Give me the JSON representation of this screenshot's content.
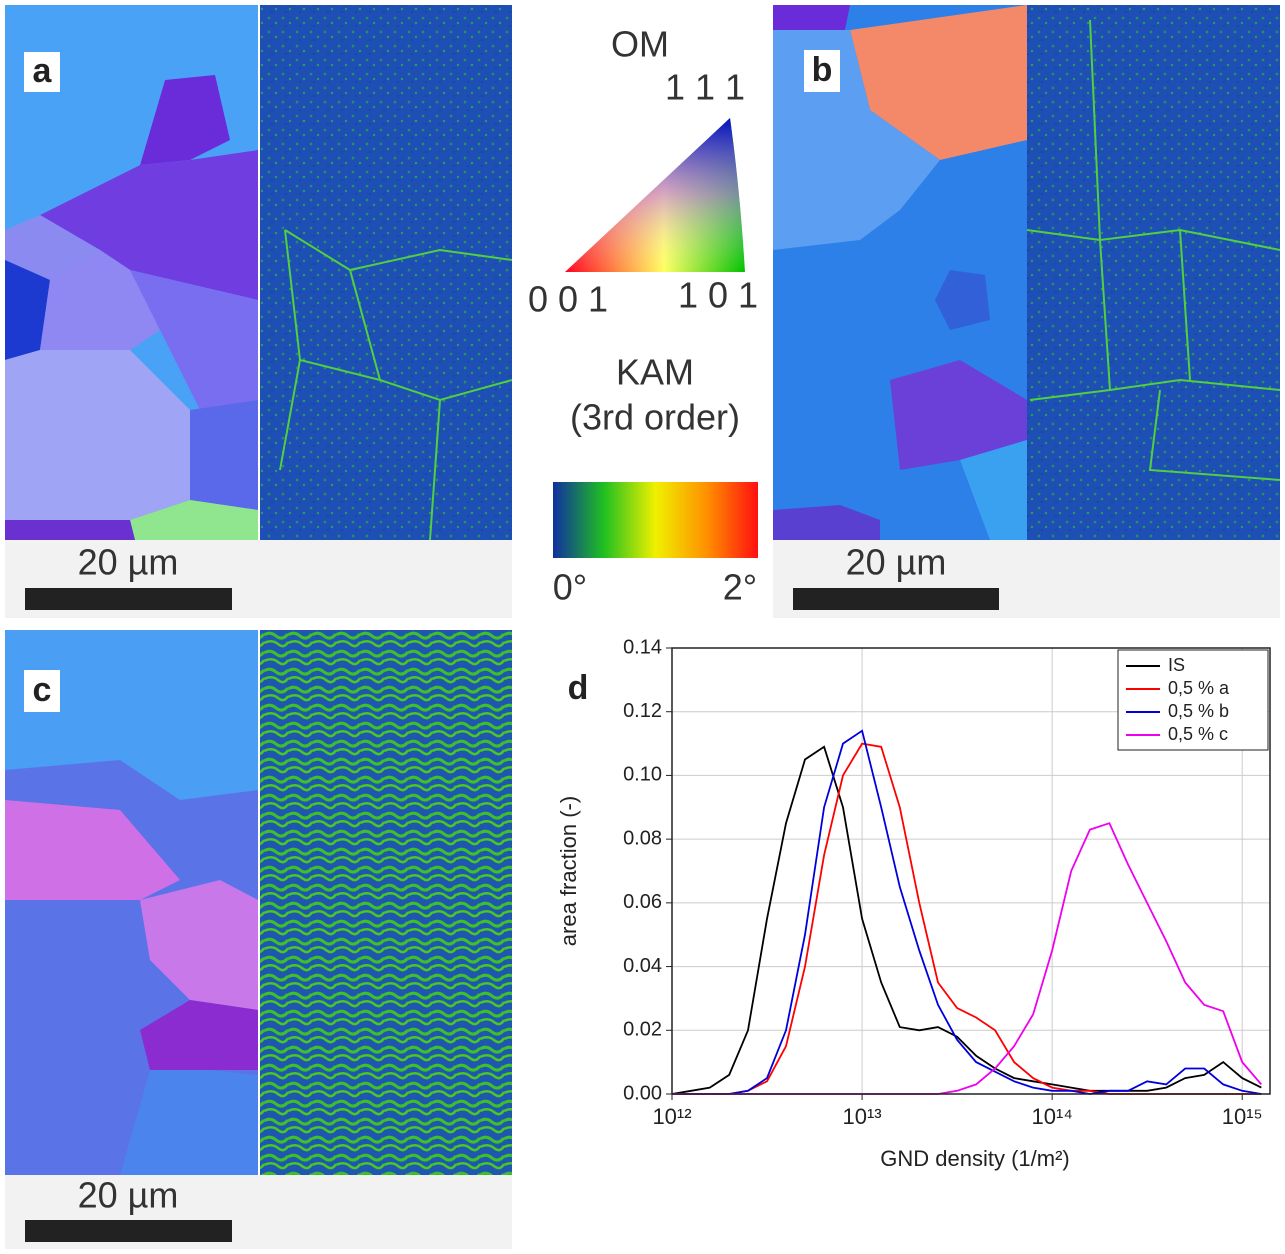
{
  "panels": {
    "a": {
      "label": "a",
      "scale_bar": "20 µm"
    },
    "b": {
      "label": "b",
      "scale_bar": "20 µm"
    },
    "c": {
      "label": "c",
      "scale_bar": "20 µm"
    }
  },
  "legend_key": {
    "om_title": "OM",
    "pole_111": "1 1 1",
    "pole_001": "0 0 1",
    "pole_101": "1 0 1",
    "kam_title": "KAM",
    "kam_subtitle": "(3rd order)",
    "kam_min": "0°",
    "kam_max": "2°"
  },
  "chart_data": {
    "type": "line",
    "panel_label": "d",
    "x_label": "GND density (1/m²)",
    "y_label": "area fraction (-)",
    "log_x": true,
    "grid": true,
    "legend": "upper right",
    "xlim": [
      1000000000000.0,
      1400000000000000.0
    ],
    "xticks": [
      {
        "value": 1000000000000.0,
        "label": "10¹²"
      },
      {
        "value": 10000000000000.0,
        "label": "10¹³"
      },
      {
        "value": 100000000000000.0,
        "label": "10¹⁴"
      },
      {
        "value": 1000000000000000.0,
        "label": "10¹⁵"
      }
    ],
    "ylim": [
      0,
      0.14
    ],
    "yticks": [
      {
        "value": 0,
        "label": "0.00"
      },
      0.02,
      0.04,
      0.06,
      0.08,
      {
        "value": 0.1,
        "label": "0.10"
      },
      0.12,
      0.14
    ],
    "x": [
      1000000000000.0,
      1260000000000.0,
      1580000000000.0,
      2000000000000.0,
      2510000000000.0,
      3160000000000.0,
      3980000000000.0,
      5010000000000.0,
      6310000000000.0,
      7940000000000.0,
      10000000000000.0,
      12600000000000.0,
      15800000000000.0,
      20000000000000.0,
      25100000000000.0,
      31600000000000.0,
      39800000000000.0,
      50100000000000.0,
      63100000000000.0,
      79400000000000.0,
      100000000000000.0,
      126000000000000.0,
      158000000000000.0,
      200000000000000.0,
      251000000000000.0,
      316000000000000.0,
      398000000000000.0,
      501000000000000.0,
      631000000000000.0,
      794000000000000.0,
      1000000000000000.0,
      1260000000000000.0
    ],
    "series": [
      {
        "name": "IS",
        "color": "#000000",
        "values": [
          0,
          0.001,
          0.002,
          0.006,
          0.02,
          0.055,
          0.085,
          0.105,
          0.109,
          0.09,
          0.055,
          0.035,
          0.021,
          0.02,
          0.021,
          0.018,
          0.012,
          0.008,
          0.005,
          0.004,
          0.003,
          0.002,
          0.001,
          0.001,
          0.001,
          0.001,
          0.002,
          0.005,
          0.006,
          0.01,
          0.005,
          0.002
        ]
      },
      {
        "name": "0,5 % a",
        "color": "#ff0000",
        "values": [
          0,
          0,
          0,
          0,
          0.001,
          0.004,
          0.015,
          0.04,
          0.075,
          0.1,
          0.11,
          0.109,
          0.09,
          0.06,
          0.035,
          0.027,
          0.024,
          0.02,
          0.01,
          0.005,
          0.002,
          0.001,
          0.001,
          0,
          0,
          0,
          0,
          0,
          0,
          0,
          0,
          0
        ]
      },
      {
        "name": "0,5 % b",
        "color": "#0000dd",
        "values": [
          0,
          0,
          0,
          0,
          0.001,
          0.005,
          0.02,
          0.05,
          0.09,
          0.11,
          0.114,
          0.09,
          0.065,
          0.045,
          0.028,
          0.017,
          0.01,
          0.007,
          0.004,
          0.002,
          0.001,
          0.001,
          0,
          0.001,
          0.001,
          0.004,
          0.003,
          0.008,
          0.008,
          0.003,
          0.001,
          0
        ]
      },
      {
        "name": "0,5 % c",
        "color": "#ee00ee",
        "values": [
          0,
          0,
          0,
          0,
          0,
          0,
          0,
          0,
          0,
          0,
          0,
          0,
          0,
          0,
          0,
          0.001,
          0.003,
          0.008,
          0.015,
          0.025,
          0.045,
          0.07,
          0.083,
          0.085,
          0.072,
          0.06,
          0.048,
          0.035,
          0.028,
          0.026,
          0.01,
          0.003
        ]
      }
    ]
  }
}
